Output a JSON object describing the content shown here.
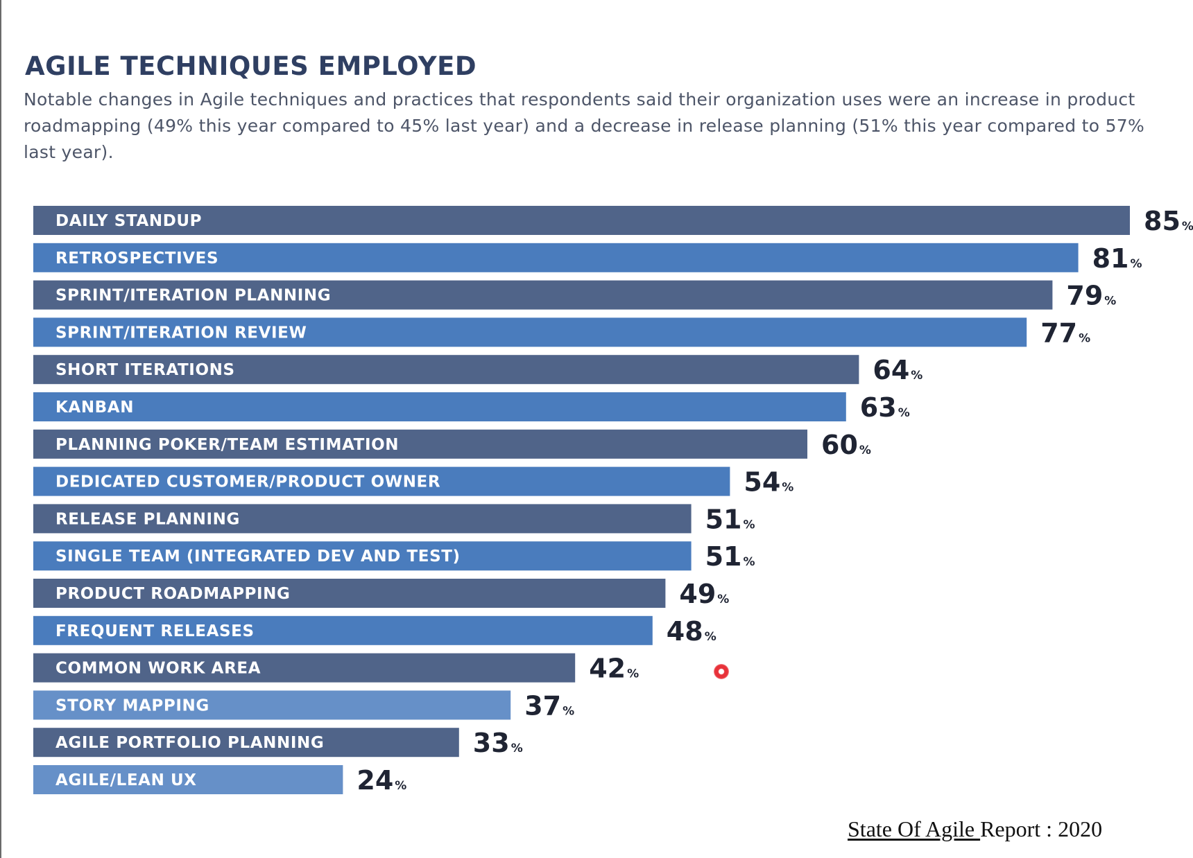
{
  "header": {
    "title": "AGILE TECHNIQUES EMPLOYED",
    "subtitle": "Notable changes in Agile techniques and practices that respondents said their organization uses were an increase in product roadmapping (49% this year compared to 45% last year) and a decrease in release planning (51% this year compared to 57% last year)."
  },
  "footer": {
    "source_underlined": "State Of Agile ",
    "source_rest": "Report : 2020"
  },
  "colors": {
    "bar_dark": "#506489",
    "bar_mid": "#4a7cbd",
    "bar_light": "#6690c8"
  },
  "chart_data": {
    "type": "bar",
    "orientation": "horizontal",
    "unit": "%",
    "categories": [
      "DAILY STANDUP",
      "RETROSPECTIVES",
      "SPRINT/ITERATION PLANNING",
      "SPRINT/ITERATION REVIEW",
      "SHORT ITERATIONS",
      "KANBAN",
      "PLANNING POKER/TEAM ESTIMATION",
      "DEDICATED CUSTOMER/PRODUCT OWNER",
      "RELEASE PLANNING",
      "SINGLE TEAM (INTEGRATED DEV AND TEST)",
      "PRODUCT ROADMAPPING",
      "FREQUENT RELEASES",
      "COMMON WORK AREA",
      "STORY MAPPING",
      "AGILE PORTFOLIO PLANNING",
      "AGILE/LEAN UX"
    ],
    "values": [
      85,
      81,
      79,
      77,
      64,
      63,
      60,
      54,
      51,
      51,
      49,
      48,
      42,
      37,
      33,
      24
    ],
    "value_labels": [
      "85",
      "81",
      "79",
      "77",
      "64",
      "63",
      "60",
      "54",
      "51",
      "51",
      "49",
      "48",
      "42",
      "37",
      "33",
      "24"
    ],
    "bar_colors": [
      "dark",
      "mid",
      "dark",
      "mid",
      "dark",
      "mid",
      "dark",
      "mid",
      "dark",
      "mid",
      "dark",
      "mid",
      "dark",
      "light",
      "dark",
      "light"
    ],
    "xlim": [
      0,
      100
    ],
    "grid": false,
    "legend": "none"
  }
}
